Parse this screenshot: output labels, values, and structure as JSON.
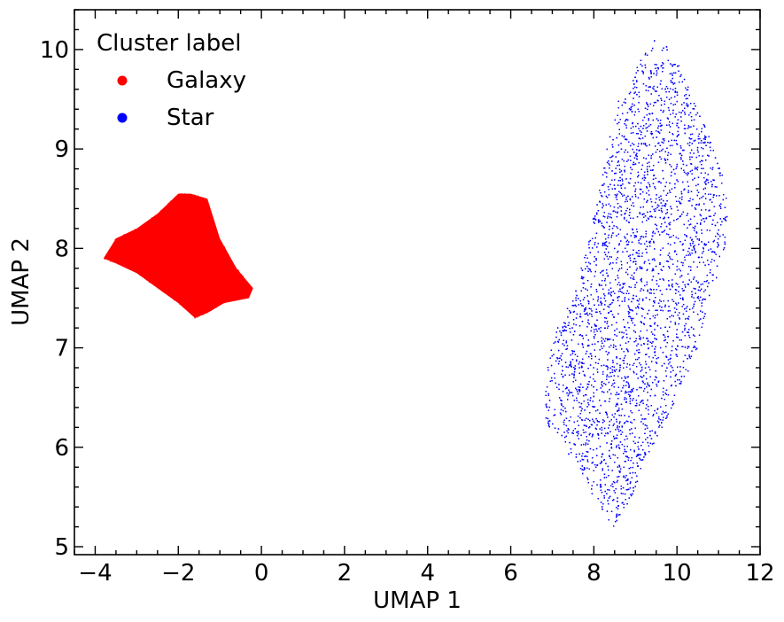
{
  "chart_data": {
    "type": "scatter",
    "xlabel": "UMAP 1",
    "ylabel": "UMAP 2",
    "xlim": [
      -4.5,
      12.0
    ],
    "ylim": [
      4.92,
      10.4
    ],
    "xticks": [
      -4,
      -2,
      0,
      2,
      4,
      6,
      8,
      10,
      12
    ],
    "xtick_labels": [
      "−4",
      "−2",
      "0",
      "2",
      "4",
      "6",
      "8",
      "10",
      "12"
    ],
    "yticks": [
      5,
      6,
      7,
      8,
      9,
      10
    ],
    "ytick_labels": [
      "5",
      "6",
      "7",
      "8",
      "9",
      "10"
    ],
    "grid": false,
    "ticks_direction": "in",
    "legend": {
      "title": "Cluster label",
      "placement": "upper-left"
    },
    "series": [
      {
        "name": "Galaxy",
        "color": "#ff0000",
        "region_polygon": [
          [
            -3.8,
            7.9
          ],
          [
            -3.5,
            8.1
          ],
          [
            -3.0,
            8.2
          ],
          [
            -2.5,
            8.35
          ],
          [
            -2.0,
            8.55
          ],
          [
            -1.7,
            8.55
          ],
          [
            -1.3,
            8.5
          ],
          [
            -1.0,
            8.1
          ],
          [
            -0.6,
            7.8
          ],
          [
            -0.2,
            7.6
          ],
          [
            -0.3,
            7.5
          ],
          [
            -0.9,
            7.45
          ],
          [
            -1.3,
            7.35
          ],
          [
            -1.6,
            7.3
          ],
          [
            -2.0,
            7.45
          ],
          [
            -2.5,
            7.6
          ],
          [
            -3.0,
            7.75
          ],
          [
            -3.5,
            7.85
          ]
        ],
        "approx_point_count": 9000,
        "dense": true
      },
      {
        "name": "Star",
        "color": "#0000ff",
        "region_polygon": [
          [
            6.8,
            6.3
          ],
          [
            6.9,
            6.9
          ],
          [
            7.1,
            7.2
          ],
          [
            7.5,
            7.5
          ],
          [
            7.8,
            8.0
          ],
          [
            8.1,
            8.5
          ],
          [
            8.3,
            9.0
          ],
          [
            8.6,
            9.5
          ],
          [
            9.0,
            9.8
          ],
          [
            9.4,
            10.1
          ],
          [
            9.8,
            10.05
          ],
          [
            10.2,
            9.7
          ],
          [
            10.6,
            9.3
          ],
          [
            10.9,
            9.0
          ],
          [
            11.2,
            8.6
          ],
          [
            11.25,
            8.2
          ],
          [
            11.1,
            7.9
          ],
          [
            10.8,
            7.5
          ],
          [
            10.5,
            7.0
          ],
          [
            10.0,
            6.5
          ],
          [
            9.4,
            6.0
          ],
          [
            8.9,
            5.5
          ],
          [
            8.45,
            5.18
          ],
          [
            8.2,
            5.35
          ],
          [
            7.7,
            5.7
          ],
          [
            7.3,
            6.0
          ],
          [
            6.9,
            6.2
          ]
        ],
        "approx_point_count": 9000,
        "dense": false
      }
    ]
  }
}
